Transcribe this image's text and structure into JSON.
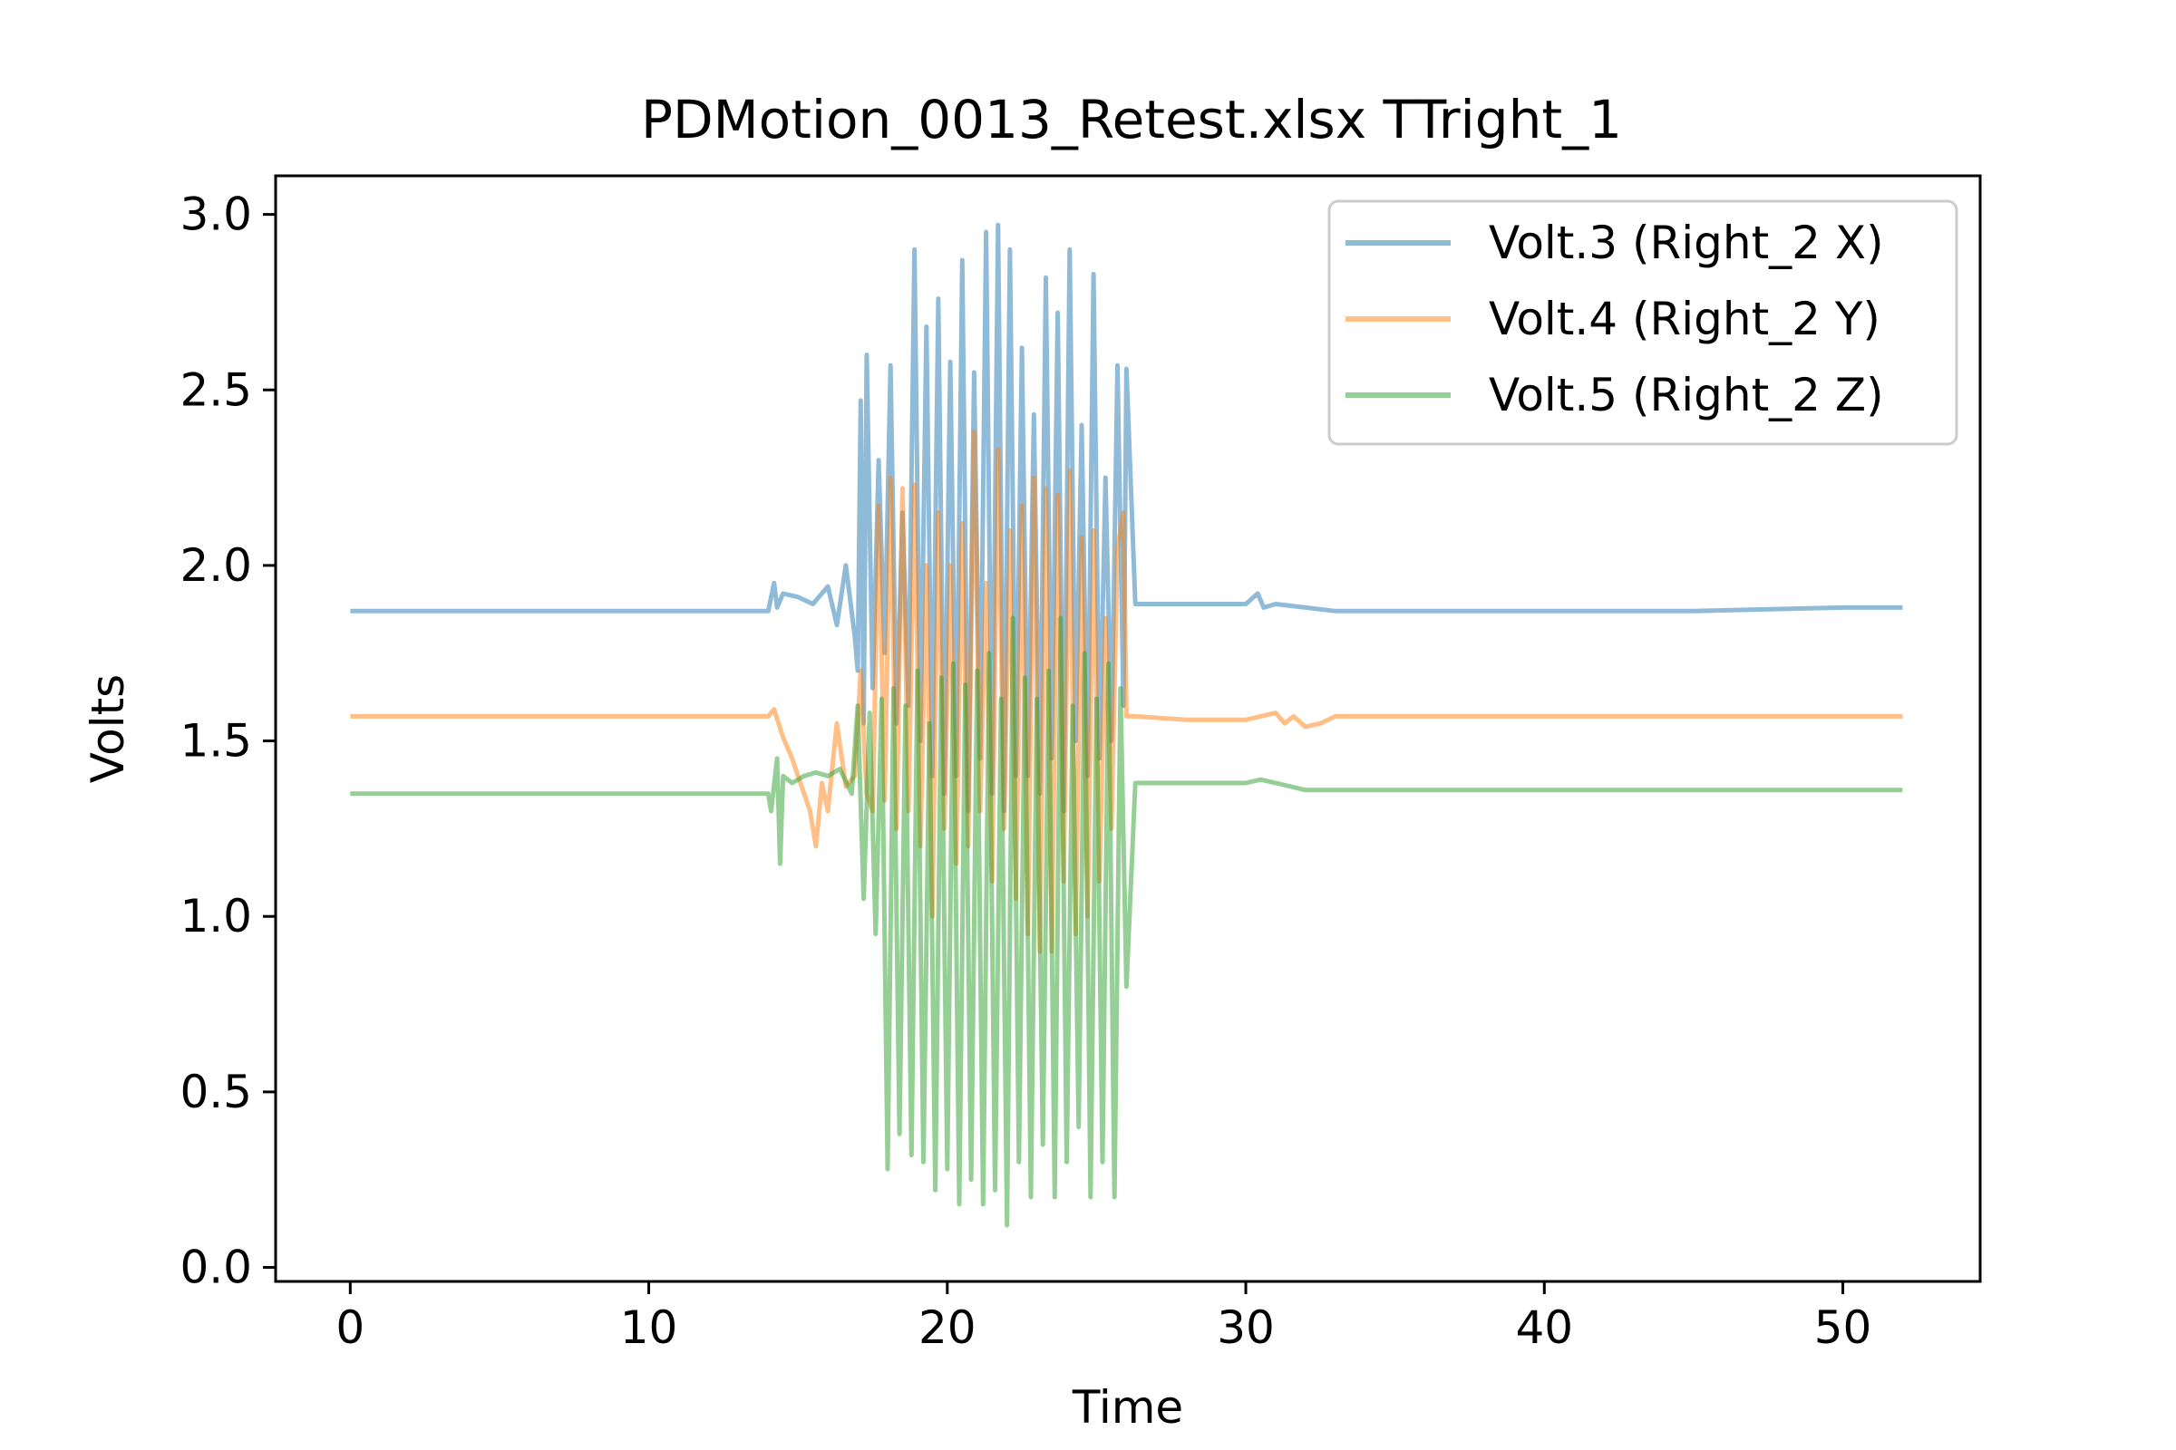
{
  "chart_data": {
    "type": "line",
    "title": "PDMotion_0013_Retest.xlsx TTright_1",
    "xlabel": "Time",
    "ylabel": "Volts",
    "xlim": [
      -2.5,
      54.6
    ],
    "ylim": [
      -0.04,
      3.11
    ],
    "x_ticks": [
      0,
      10,
      20,
      30,
      40,
      50
    ],
    "y_ticks": [
      0.0,
      0.5,
      1.0,
      1.5,
      2.0,
      2.5,
      3.0
    ],
    "x_tick_labels": [
      "0",
      "10",
      "20",
      "30",
      "40",
      "50"
    ],
    "y_tick_labels": [
      "0.0",
      "0.5",
      "1.0",
      "1.5",
      "2.0",
      "2.5",
      "3.0"
    ],
    "grid": false,
    "legend_position": "top-right",
    "series": [
      {
        "name": "Volt.3 (Right_2 X)",
        "color": "#1f77b4",
        "opacity": 0.5,
        "x": [
          0,
          5,
          10,
          14.0,
          14.2,
          14.3,
          14.5,
          15.0,
          15.5,
          16.0,
          16.3,
          16.6,
          16.9,
          17.0,
          17.1,
          17.2,
          17.3,
          17.5,
          17.7,
          17.9,
          18.1,
          18.3,
          18.5,
          18.7,
          18.9,
          19.1,
          19.3,
          19.5,
          19.7,
          19.9,
          20.1,
          20.3,
          20.5,
          20.7,
          20.9,
          21.1,
          21.3,
          21.5,
          21.7,
          21.9,
          22.1,
          22.3,
          22.5,
          22.7,
          22.9,
          23.1,
          23.3,
          23.5,
          23.7,
          23.9,
          24.1,
          24.3,
          24.5,
          24.7,
          24.9,
          25.1,
          25.3,
          25.5,
          25.7,
          25.9,
          26.0,
          26.3,
          28,
          30,
          30.4,
          30.6,
          31,
          32,
          33,
          35,
          40,
          45,
          50,
          52
        ],
        "y": [
          1.87,
          1.87,
          1.87,
          1.87,
          1.95,
          1.88,
          1.92,
          1.91,
          1.89,
          1.94,
          1.83,
          2.0,
          1.8,
          1.7,
          2.47,
          1.55,
          2.6,
          1.65,
          2.3,
          1.75,
          2.57,
          1.55,
          2.15,
          1.6,
          2.9,
          1.5,
          2.68,
          1.4,
          2.76,
          1.35,
          2.58,
          1.4,
          2.87,
          1.3,
          2.55,
          1.45,
          2.95,
          1.35,
          2.97,
          1.3,
          2.9,
          1.4,
          2.62,
          1.4,
          2.43,
          1.35,
          2.82,
          1.45,
          2.72,
          1.3,
          2.9,
          1.5,
          2.4,
          1.4,
          2.83,
          1.45,
          2.25,
          1.5,
          2.57,
          1.6,
          2.56,
          1.89,
          1.89,
          1.89,
          1.92,
          1.88,
          1.89,
          1.88,
          1.87,
          1.87,
          1.87,
          1.87,
          1.88,
          1.88
        ]
      },
      {
        "name": "Volt.4 (Right_2 Y)",
        "color": "#ff7f0e",
        "opacity": 0.5,
        "x": [
          0,
          5,
          10,
          14.0,
          14.2,
          14.5,
          14.8,
          15.0,
          15.2,
          15.4,
          15.6,
          15.8,
          16.0,
          16.3,
          16.6,
          16.9,
          17.1,
          17.3,
          17.5,
          17.7,
          17.9,
          18.1,
          18.3,
          18.5,
          18.7,
          18.9,
          19.1,
          19.3,
          19.5,
          19.7,
          19.9,
          20.1,
          20.3,
          20.5,
          20.7,
          20.9,
          21.1,
          21.3,
          21.5,
          21.7,
          21.9,
          22.1,
          22.3,
          22.5,
          22.7,
          22.9,
          23.1,
          23.3,
          23.5,
          23.7,
          23.9,
          24.1,
          24.3,
          24.5,
          24.7,
          24.9,
          25.1,
          25.3,
          25.5,
          25.7,
          25.9,
          26.0,
          26.3,
          28,
          30,
          31.0,
          31.3,
          31.6,
          32.0,
          32.5,
          33,
          35,
          40,
          45,
          50,
          52
        ],
        "y": [
          1.57,
          1.57,
          1.57,
          1.57,
          1.59,
          1.51,
          1.45,
          1.4,
          1.35,
          1.3,
          1.2,
          1.38,
          1.3,
          1.55,
          1.37,
          1.4,
          1.7,
          1.35,
          1.3,
          2.17,
          1.33,
          2.25,
          1.25,
          2.22,
          1.3,
          2.23,
          1.2,
          2.0,
          1.0,
          2.15,
          1.25,
          2.0,
          1.15,
          2.12,
          1.2,
          2.38,
          1.3,
          1.95,
          1.1,
          2.33,
          1.25,
          2.1,
          1.05,
          2.17,
          0.95,
          2.25,
          0.9,
          2.22,
          0.9,
          2.2,
          1.1,
          2.27,
          0.95,
          2.08,
          1.0,
          2.1,
          1.1,
          1.85,
          1.25,
          2.05,
          2.15,
          1.57,
          1.57,
          1.56,
          1.56,
          1.58,
          1.55,
          1.57,
          1.54,
          1.55,
          1.57,
          1.57,
          1.57,
          1.57,
          1.57,
          1.57
        ]
      },
      {
        "name": "Volt.5 (Right_2 Z)",
        "color": "#2ca02c",
        "opacity": 0.5,
        "x": [
          0,
          5,
          10,
          14.0,
          14.1,
          14.3,
          14.4,
          14.5,
          14.8,
          15.2,
          15.6,
          16.0,
          16.4,
          16.8,
          17.0,
          17.2,
          17.4,
          17.6,
          17.8,
          18.0,
          18.2,
          18.4,
          18.6,
          18.8,
          19.0,
          19.2,
          19.4,
          19.6,
          19.8,
          20.0,
          20.2,
          20.4,
          20.6,
          20.8,
          21.0,
          21.2,
          21.4,
          21.6,
          21.8,
          22.0,
          22.2,
          22.4,
          22.6,
          22.8,
          23.0,
          23.2,
          23.4,
          23.6,
          23.8,
          24.0,
          24.2,
          24.4,
          24.6,
          24.8,
          25.0,
          25.2,
          25.4,
          25.6,
          25.8,
          26.0,
          26.3,
          28,
          30,
          30.5,
          31,
          32,
          33,
          35,
          40,
          45,
          50,
          52
        ],
        "y": [
          1.35,
          1.35,
          1.35,
          1.35,
          1.3,
          1.45,
          1.15,
          1.4,
          1.38,
          1.4,
          1.41,
          1.4,
          1.42,
          1.35,
          1.6,
          1.05,
          1.58,
          0.95,
          1.62,
          0.28,
          1.65,
          0.38,
          1.6,
          0.32,
          1.7,
          0.3,
          1.55,
          0.22,
          1.68,
          0.28,
          1.72,
          0.18,
          1.66,
          0.25,
          1.7,
          0.18,
          1.75,
          0.22,
          1.62,
          0.12,
          1.85,
          0.3,
          1.68,
          0.2,
          1.62,
          0.35,
          1.7,
          0.2,
          1.85,
          0.3,
          1.6,
          0.4,
          1.75,
          0.2,
          1.62,
          0.3,
          1.72,
          0.2,
          1.65,
          0.8,
          1.38,
          1.38,
          1.38,
          1.39,
          1.38,
          1.36,
          1.36,
          1.36,
          1.36,
          1.36,
          1.36,
          1.36
        ]
      }
    ]
  }
}
